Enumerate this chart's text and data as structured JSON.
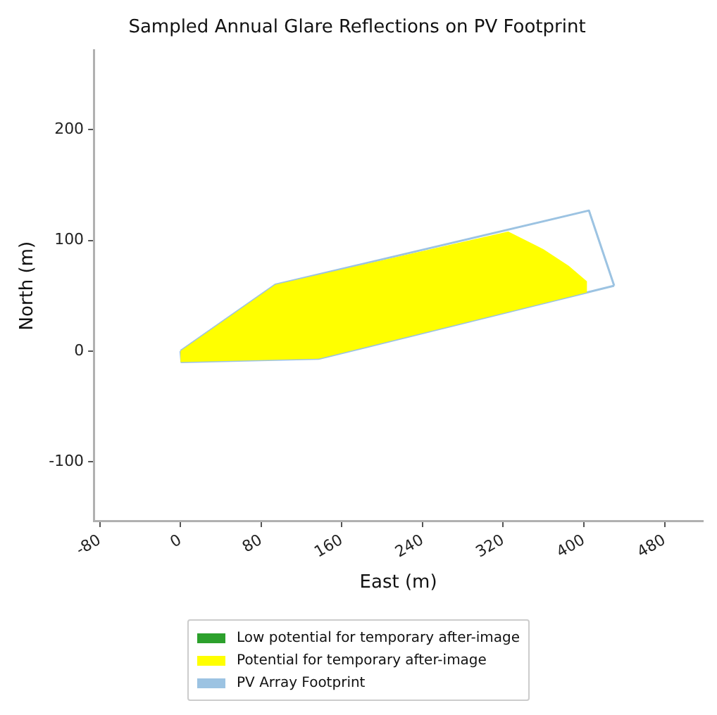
{
  "chart_data": {
    "type": "line",
    "title": "Sampled Annual Glare Reflections on PV Footprint",
    "xlabel": "East (m)",
    "ylabel": "North (m)",
    "xlim": [
      -86,
      518
    ],
    "xticks": [
      -80,
      0,
      80,
      160,
      240,
      320,
      400,
      480
    ],
    "ylim": [
      -154,
      272
    ],
    "yticks": [
      -100,
      0,
      100,
      200
    ],
    "grid": false,
    "legend": "bottom",
    "marker": "none",
    "series": [
      {
        "name": "Low potential for temporary after-image",
        "type": "area",
        "color": "#2ca02c"
      },
      {
        "name": "Potential for temporary after-image",
        "type": "area",
        "color": "#ffff00",
        "x": [
          0,
          94,
          325,
          360,
          385,
          403,
          403,
          137,
          1,
          0
        ],
        "values": [
          0,
          60,
          108,
          92,
          77,
          63,
          53,
          -7,
          -10,
          0
        ]
      },
      {
        "name": "PV Array Footprint",
        "color": "#9cc3e2",
        "x": [
          0,
          94,
          405,
          430
        ],
        "values": [
          0,
          60,
          127,
          59
        ]
      },
      {
        "color": "#9cc3e2",
        "x": [
          0,
          1,
          137,
          430
        ],
        "values": [
          0,
          -10,
          -7,
          59
        ]
      }
    ]
  }
}
